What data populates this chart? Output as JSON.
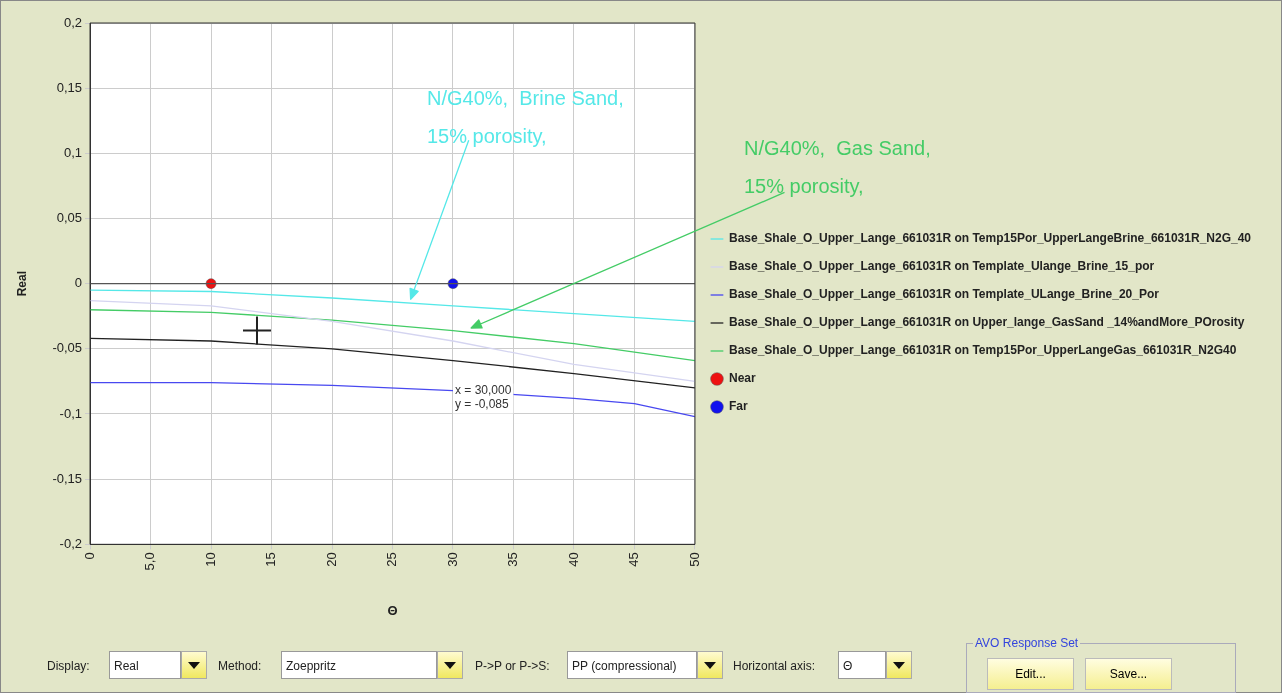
{
  "chart_data": {
    "type": "line",
    "xlabel": "Θ",
    "ylabel": "Real",
    "xlim": [
      0,
      50
    ],
    "xticks": [
      0,
      {
        "value": 5,
        "label": "5,0"
      },
      10,
      15,
      20,
      25,
      30,
      35,
      40,
      45,
      50
    ],
    "ylim": [
      -0.2,
      0.2
    ],
    "yticks": [
      {
        "value": -0.2,
        "label": "-0,2"
      },
      {
        "value": -0.15,
        "label": "-0,15"
      },
      {
        "value": -0.1,
        "label": "-0,1"
      },
      {
        "value": -0.05,
        "label": "-0,05"
      },
      0,
      {
        "value": 0.05,
        "label": "0,05"
      },
      {
        "value": 0.1,
        "label": "0,1"
      },
      {
        "value": 0.15,
        "label": "0,15"
      },
      {
        "value": 0.2,
        "label": "0,2"
      }
    ],
    "grid": true,
    "legend": "right",
    "marker": "none",
    "line_style": "solid",
    "ref_lines": [
      {
        "axis": "y",
        "value": 0,
        "color": "#555555"
      }
    ],
    "series": [
      {
        "name": "Base_Shale_O_Upper_Lange_661031R on Temp15Por_UpperLangeBrine_661031R_N2G_40",
        "color": "#55e8e8",
        "x": [
          0,
          10,
          20,
          30,
          40,
          50
        ],
        "values": [
          -0.005,
          -0.006,
          -0.011,
          -0.017,
          -0.023,
          -0.029
        ]
      },
      {
        "name": "Base_Shale_O_Upper_Lange_661031R on Template_Ulange_Brine_15_por",
        "color": "#d4d4f0",
        "x": [
          0,
          10,
          20,
          30,
          40,
          50
        ],
        "values": [
          -0.013,
          -0.017,
          -0.029,
          -0.044,
          -0.062,
          -0.075
        ]
      },
      {
        "name": "Base_Shale_O_Upper_Lange_661031R on Template_ULange_Brine_20_Por",
        "color": "#4848f0",
        "x": [
          0,
          10,
          20,
          30,
          40,
          45,
          50
        ],
        "values": [
          -0.076,
          -0.076,
          -0.078,
          -0.082,
          -0.088,
          -0.092,
          -0.102
        ]
      },
      {
        "name": "Base_Shale_O_Upper_Lange_661031R on Upper_lange_GasSand _14%andMore_POrosity",
        "color": "#222222",
        "x": [
          0,
          10,
          20,
          30,
          40,
          50
        ],
        "values": [
          -0.042,
          -0.044,
          -0.05,
          -0.059,
          -0.069,
          -0.08
        ]
      },
      {
        "name": "Base_Shale_O_Upper_Lange_661031R on Temp15Por_UpperLangeGas_661031R_N2G40",
        "color": "#44cc66",
        "x": [
          0,
          10,
          20,
          30,
          40,
          50
        ],
        "values": [
          -0.02,
          -0.022,
          -0.028,
          -0.036,
          -0.046,
          -0.059
        ]
      },
      {
        "name": "Near",
        "type": "scatter",
        "marker": "circle",
        "color": "#ee1111",
        "x": [
          10
        ],
        "values": [
          0
        ]
      },
      {
        "name": "Far",
        "type": "scatter",
        "marker": "circle",
        "color": "#1111ee",
        "x": [
          30
        ],
        "values": [
          0
        ]
      }
    ],
    "annotations": [
      {
        "text": "N/G40%,  Brine Sand,\n15% porosity,",
        "x": 26.5,
        "y": -0.012
      },
      {
        "text": "N/G40%,  Gas Sand,\n15% porosity,",
        "x": 31.5,
        "y": -0.034
      },
      {
        "text": "x = 30,000\ny = -0,085",
        "x": 30,
        "y": -0.085
      },
      "Display:",
      "Real",
      "Method:",
      "Zoeppritz",
      "P->P or P->S:",
      "PP (compressional)",
      "Horizontal axis:",
      "Θ",
      "AVO Response Set",
      "Edit...",
      "Save..."
    ]
  }
}
